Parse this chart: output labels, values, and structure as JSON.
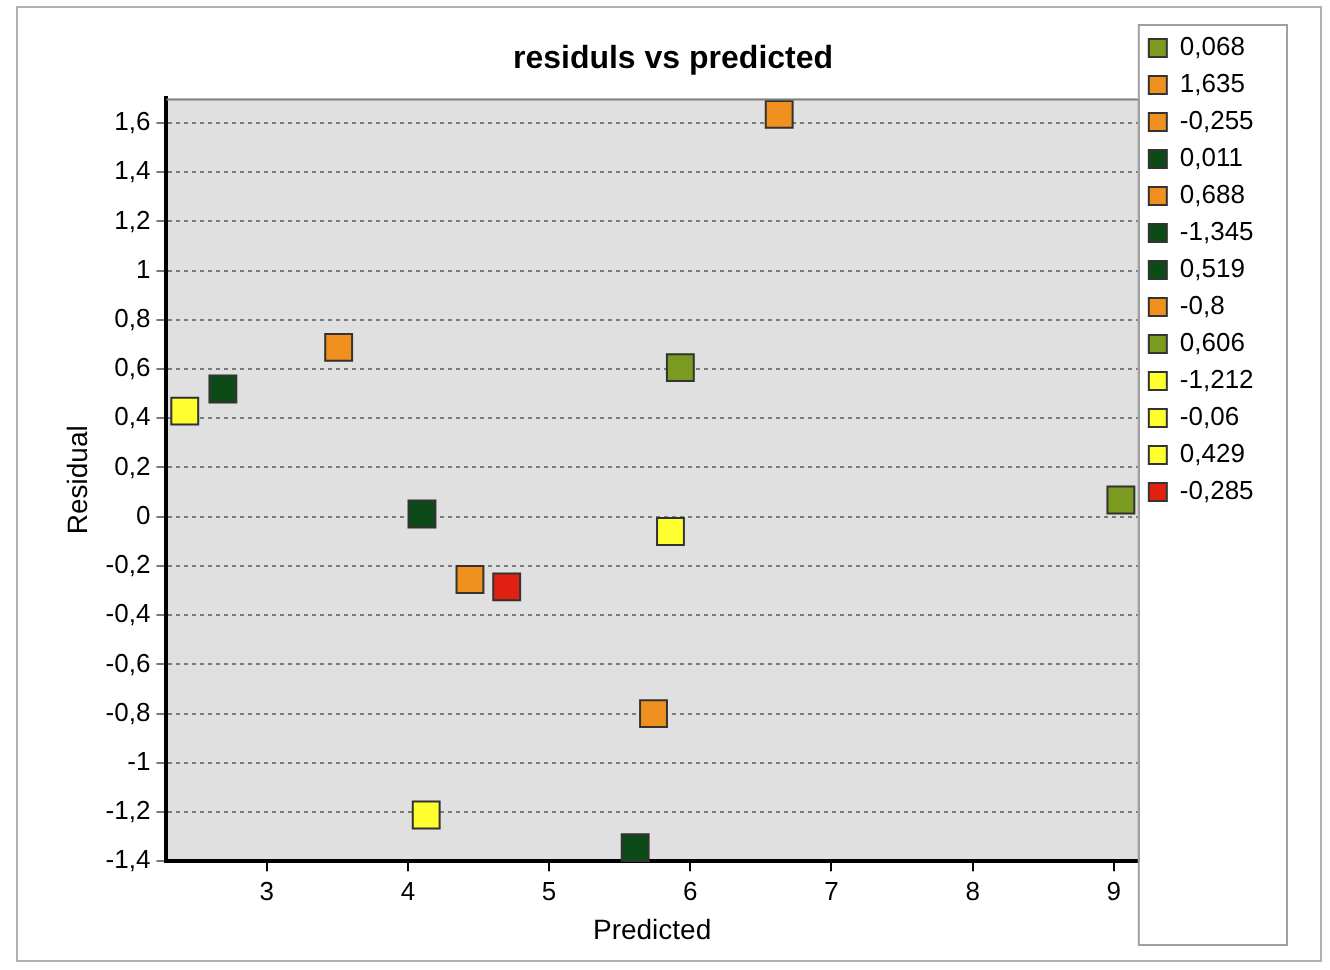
{
  "chart_data": {
    "type": "scatter",
    "title": "residuls vs predicted",
    "xlabel": "Predicted",
    "ylabel": "Residual",
    "xlim": [
      2.29,
      9.17
    ],
    "ylim": [
      -1.4,
      1.7
    ],
    "xticks": [
      3,
      4,
      5,
      6,
      7,
      8,
      9
    ],
    "yticks": [
      {
        "value": -1.4,
        "label": "-1,4"
      },
      {
        "value": -1.2,
        "label": "-1,2"
      },
      -1,
      {
        "value": -0.8,
        "label": "-0,8"
      },
      {
        "value": -0.6,
        "label": "-0,6"
      },
      {
        "value": -0.4,
        "label": "-0,4"
      },
      {
        "value": -0.2,
        "label": "-0,2"
      },
      0,
      {
        "value": 0.2,
        "label": "0,2"
      },
      {
        "value": 0.4,
        "label": "0,4"
      },
      {
        "value": 0.6,
        "label": "0,6"
      },
      {
        "value": 0.8,
        "label": "0,8"
      },
      1,
      {
        "value": 1.2,
        "label": "1,2"
      },
      {
        "value": 1.4,
        "label": "1,4"
      },
      {
        "value": 1.6,
        "label": "1,6"
      }
    ],
    "grid": "y",
    "legend": "right",
    "marker": "square",
    "series": [
      {
        "name": "0,068",
        "color": "#7a9a20",
        "x": [
          9.05
        ],
        "values": [
          0.068
        ]
      },
      {
        "name": "1,635",
        "color": "#f0901e",
        "x": [
          6.63
        ],
        "values": [
          1.635
        ]
      },
      {
        "name": "-0,255",
        "color": "#f0901e",
        "x": [
          4.44
        ],
        "values": [
          -0.255
        ]
      },
      {
        "name": "0,011",
        "color": "#0c4a18",
        "x": [
          4.1
        ],
        "values": [
          0.011
        ]
      },
      {
        "name": "0,688",
        "color": "#f0901e",
        "x": [
          3.51
        ],
        "values": [
          0.688
        ]
      },
      {
        "name": "-1,345",
        "color": "#0c4a18",
        "x": [
          5.61
        ],
        "values": [
          -1.345
        ]
      },
      {
        "name": "0,519",
        "color": "#0c4a18",
        "x": [
          2.69
        ],
        "values": [
          0.519
        ]
      },
      {
        "name": "-0,8",
        "color": "#f0901e",
        "x": [
          5.74
        ],
        "values": [
          -0.8
        ]
      },
      {
        "name": "0,606",
        "color": "#7a9a20",
        "x": [
          5.93
        ],
        "values": [
          0.606
        ]
      },
      {
        "name": "-1,212",
        "color": "#ffff30",
        "x": [
          4.13
        ],
        "values": [
          -1.212
        ]
      },
      {
        "name": "-0,06",
        "color": "#ffff30",
        "x": [
          5.86
        ],
        "values": [
          -0.06
        ]
      },
      {
        "name": "0,429",
        "color": "#ffff30",
        "x": [
          2.42
        ],
        "values": [
          0.429
        ]
      },
      {
        "name": "-0,285",
        "color": "#e02010",
        "x": [
          4.7
        ],
        "values": [
          -0.285
        ]
      }
    ]
  }
}
